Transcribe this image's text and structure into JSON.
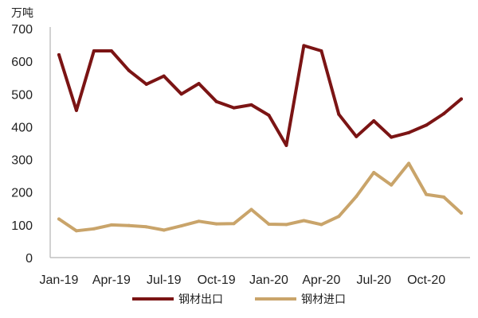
{
  "chart_data": {
    "type": "line",
    "title": "",
    "xlabel": "",
    "ylabel": "",
    "unit_label": "万吨",
    "ylim": [
      0,
      700
    ],
    "yticks": [
      0,
      100,
      200,
      300,
      400,
      500,
      600,
      700
    ],
    "grid": false,
    "legend_position": "bottom",
    "x": [
      "Jan-19",
      "Feb-19",
      "Mar-19",
      "Apr-19",
      "May-19",
      "Jun-19",
      "Jul-19",
      "Aug-19",
      "Sep-19",
      "Oct-19",
      "Nov-19",
      "Dec-19",
      "Jan-20",
      "Feb-20",
      "Mar-20",
      "Apr-20",
      "May-20",
      "Jun-20",
      "Jul-20",
      "Aug-20",
      "Sep-20",
      "Oct-20",
      "Nov-20",
      "Dec-20"
    ],
    "xtick_labels": [
      "Jan-19",
      "Apr-19",
      "Jul-19",
      "Oct-19",
      "Jan-20",
      "Apr-20",
      "Jul-20",
      "Oct-20"
    ],
    "series": [
      {
        "name": "钢材出口",
        "color": "#7b1414",
        "values": [
          620,
          450,
          632,
          632,
          572,
          530,
          555,
          500,
          532,
          477,
          458,
          467,
          435,
          343,
          648,
          632,
          438,
          370,
          418,
          368,
          382,
          405,
          440,
          485
        ]
      },
      {
        "name": "钢材进口",
        "color": "#c9a46a",
        "values": [
          118,
          82,
          88,
          100,
          98,
          94,
          84,
          97,
          111,
          103,
          104,
          147,
          102,
          101,
          113,
          101,
          126,
          187,
          260,
          222,
          288,
          193,
          185,
          136
        ]
      }
    ]
  }
}
